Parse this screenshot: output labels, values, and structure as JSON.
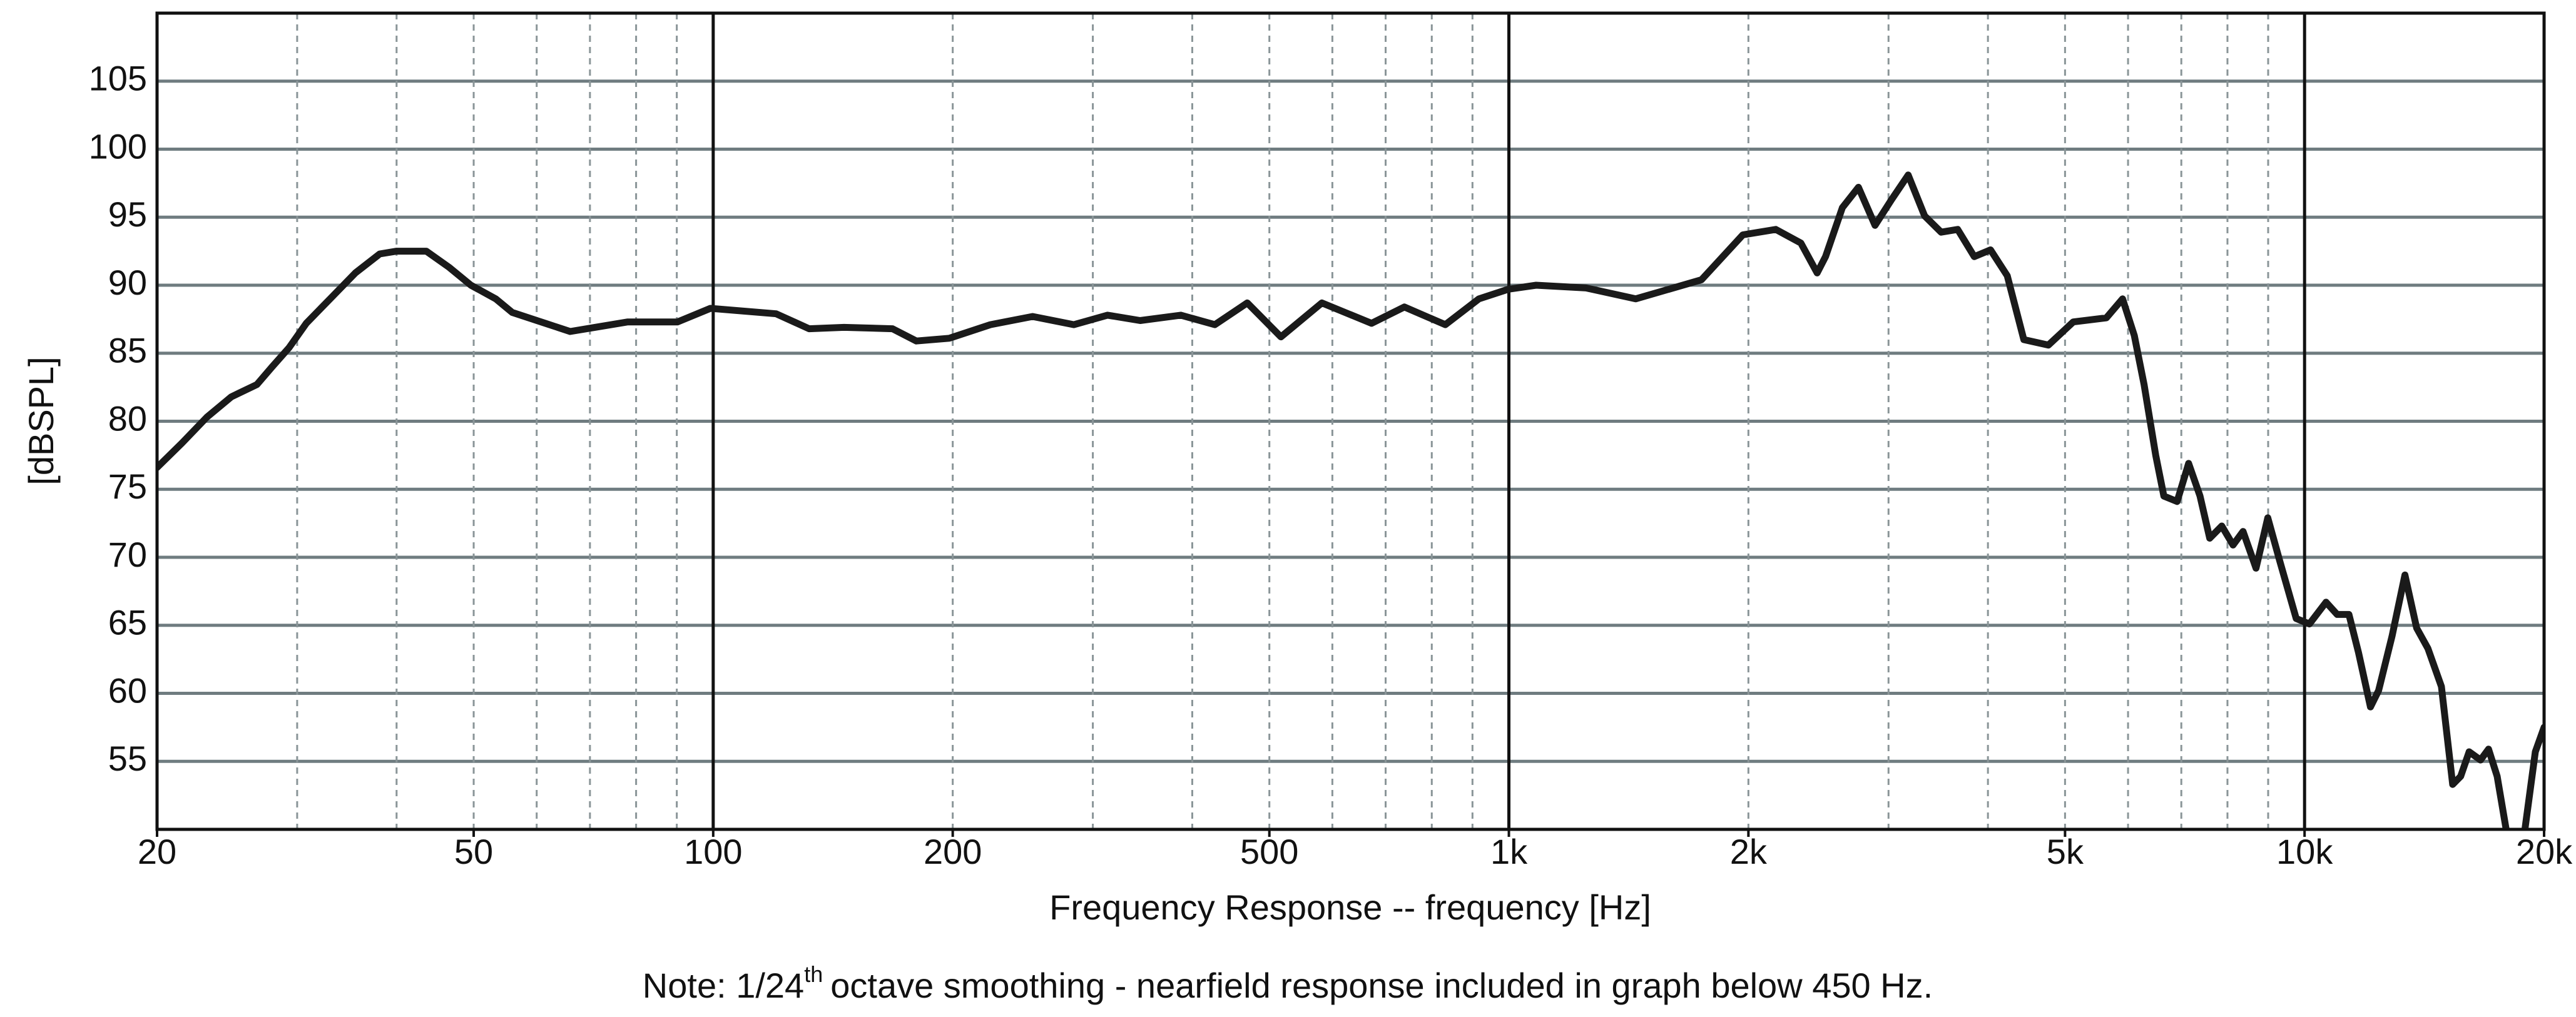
{
  "chart_data": {
    "type": "line",
    "y_label": "[dBSPL]",
    "x_label": "Frequency Response -- frequency [Hz]",
    "note": {
      "before": "Note: 1/24",
      "superscript": "th",
      "after": "octave smoothing - nearfield response included in graph below 450 Hz."
    },
    "x_log": true,
    "xlim": [
      20,
      20000
    ],
    "xticks": [
      20,
      50,
      100,
      200,
      500,
      {
        "value": 1000,
        "label": "1k"
      },
      {
        "value": 2000,
        "label": "2k"
      },
      {
        "value": 5000,
        "label": "5k"
      },
      {
        "value": 10000,
        "label": "10k"
      },
      {
        "value": 20000,
        "label": "20k"
      }
    ],
    "x_major_grid": [
      100,
      1000,
      10000
    ],
    "x_minor_grid": [
      30,
      40,
      50,
      60,
      70,
      80,
      90,
      200,
      300,
      400,
      500,
      600,
      700,
      800,
      900,
      2000,
      3000,
      4000,
      5000,
      6000,
      7000,
      8000,
      9000
    ],
    "ylim": [
      50,
      110
    ],
    "yticks": [
      55,
      60,
      65,
      70,
      75,
      80,
      85,
      90,
      95,
      100,
      105
    ],
    "grid": true,
    "x": [
      20,
      21.5,
      23.1,
      24.8,
      26.7,
      27.9,
      29.3,
      30.8,
      33.0,
      35.5,
      38.1,
      40,
      43.6,
      46.6,
      49.6,
      53.3,
      55.9,
      61.5,
      66.1,
      71.0,
      78.1,
      90.2,
      99.2,
      120,
      132,
      146,
      168,
      180,
      198,
      223,
      252,
      284,
      313,
      344,
      387,
      427,
      469,
      517,
      582,
      672,
      739,
      832,
      917,
      998,
      1082,
      1250,
      1443,
      1746,
      1968,
      2165,
      2328,
      2440,
      2500,
      2625,
      2750,
      2885,
      3027,
      3176,
      3330,
      3493,
      3665,
      3845,
      4030,
      4230,
      4438,
      4765,
      5120,
      5635,
      5905,
      6110,
      6285,
      6500,
      6655,
      6915,
      7150,
      7390,
      7600,
      7870,
      8130,
      8370,
      8690,
      8990,
      9310,
      9760,
      10140,
      10640,
      10990,
      11370,
      11690,
      12100,
      12390,
      12880,
      13370,
      13830,
      14290,
      14860,
      15350,
      15710,
      16100,
      16640,
      17030,
      17460,
      17980,
      18870,
      19500,
      20000
    ],
    "series": [
      {
        "name": "Frequency Response",
        "color": "#1a1a1a",
        "values": [
          76.6,
          78.4,
          80.3,
          81.8,
          82.7,
          84,
          85.4,
          87.2,
          89,
          90.9,
          92.3,
          92.5,
          92.5,
          91.3,
          90,
          89,
          88,
          87.2,
          86.6,
          86.9,
          87.3,
          87.3,
          88.3,
          87.9,
          86.8,
          86.9,
          86.8,
          85.9,
          86.1,
          87.1,
          87.7,
          87.1,
          87.8,
          87.4,
          87.8,
          87.1,
          88.7,
          86.2,
          88.7,
          87.2,
          88.4,
          87.1,
          89,
          89.7,
          90,
          89.8,
          89,
          90.4,
          93.7,
          94.1,
          93.1,
          90.9,
          92.1,
          95.7,
          97.2,
          94.4,
          96.3,
          98.1,
          95.1,
          93.9,
          94.1,
          92.1,
          92.6,
          90.7,
          86,
          85.6,
          87.3,
          87.6,
          89,
          86.3,
          82.7,
          77.5,
          74.5,
          74.1,
          76.9,
          74.5,
          71.4,
          72.3,
          70.9,
          71.9,
          69.2,
          72.9,
          69.7,
          65.5,
          65.1,
          66.7,
          65.8,
          65.8,
          63,
          59,
          60.2,
          64.2,
          68.7,
          64.8,
          63.3,
          60.5,
          53.3,
          53.9,
          55.7,
          55.1,
          55.9,
          53.9,
          49.5,
          49.5,
          55.7,
          57.5
        ]
      }
    ]
  }
}
